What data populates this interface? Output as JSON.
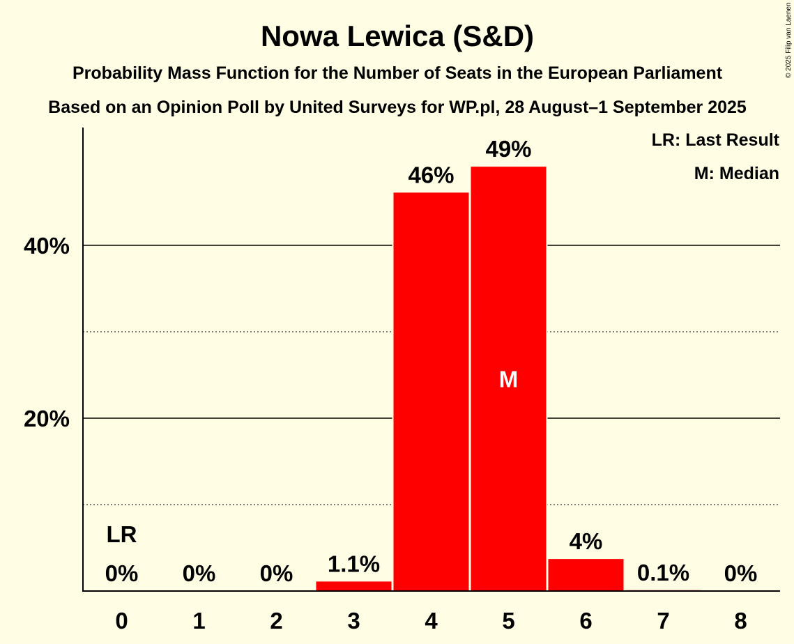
{
  "title": "Nowa Lewica (S&D)",
  "subtitle": "Probability Mass Function for the Number of Seats in the European Parliament",
  "subtitle2": "Based on an Opinion Poll by United Surveys for WP.pl, 28 August–1 September 2025",
  "copyright": "© 2025 Filip van Laenen",
  "legend": {
    "last_result": "LR: Last Result",
    "median": "M: Median"
  },
  "colors": {
    "bar": "#ff0000",
    "background": "#fffde3"
  },
  "chart_data": {
    "type": "bar",
    "categories": [
      "0",
      "1",
      "2",
      "3",
      "4",
      "5",
      "6",
      "7",
      "8"
    ],
    "values": [
      0,
      0,
      0,
      1.1,
      46.1,
      49.1,
      3.7,
      0.1,
      0
    ],
    "labels": [
      "0%",
      "0%",
      "0%",
      "1.1%",
      "46%",
      "49%",
      "4%",
      "0.1%",
      "0%"
    ],
    "ylim": [
      0,
      54
    ],
    "yticks": [
      {
        "value": 20,
        "label": "20%"
      },
      {
        "value": 40,
        "label": "40%"
      }
    ],
    "minor_gridlines": [
      10,
      30
    ],
    "last_result_seat": "0",
    "last_result_marker": "LR",
    "median_seat": "5",
    "median_marker": "M"
  }
}
